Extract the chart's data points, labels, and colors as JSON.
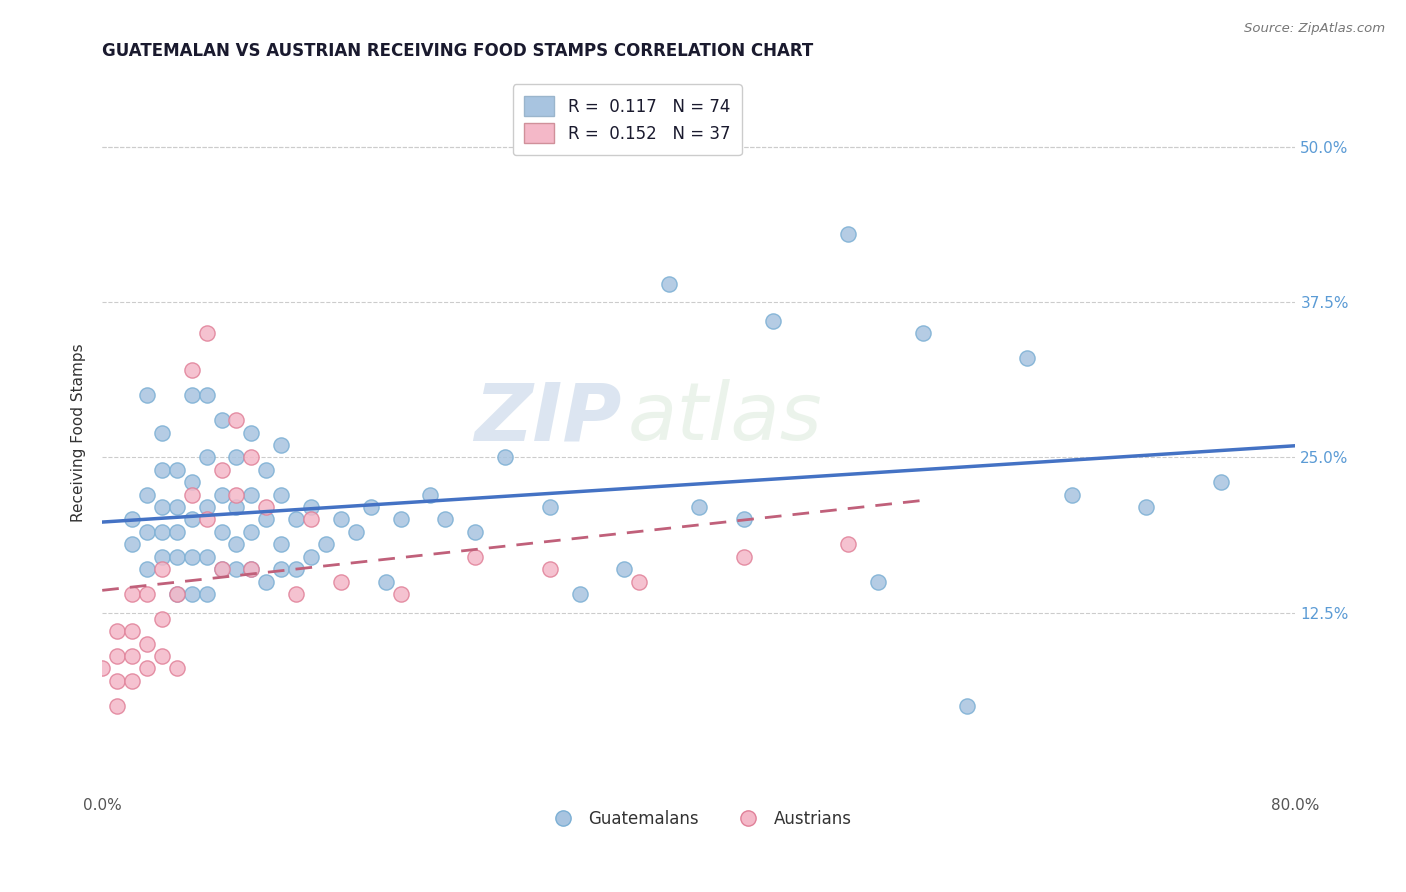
{
  "title": "GUATEMALAN VS AUSTRIAN RECEIVING FOOD STAMPS CORRELATION CHART",
  "source_text": "Source: ZipAtlas.com",
  "ylabel": "Receiving Food Stamps",
  "xmin": 0.0,
  "xmax": 0.8,
  "ymin": -0.02,
  "ymax": 0.56,
  "ytick_values": [
    0.125,
    0.25,
    0.375,
    0.5
  ],
  "ytick_labels_right": [
    "12.5%",
    "25.0%",
    "37.5%",
    "50.0%"
  ],
  "watermark_zip": "ZIP",
  "watermark_atlas": "atlas",
  "guatemalan_color": "#a8c4e0",
  "guatemalan_edge_color": "#7bafd4",
  "austrian_color": "#f4b8c8",
  "austrian_edge_color": "#e08098",
  "trend_guatemalan_color": "#4472c4",
  "trend_austrian_color": "#c0607a",
  "title_color": "#1a1a2e",
  "title_fontsize": 12,
  "legend_r1": "R =  0.117   N = 74",
  "legend_r2": "R =  0.152   N = 37",
  "legend_color1": "#a8c4e0",
  "legend_color2": "#f4b8c8",
  "bottom_legend": [
    "Guatemalans",
    "Austrians"
  ],
  "grid_color": "#cccccc",
  "right_tick_color": "#5b9bd5",
  "guatemalan_scatter_x": [
    0.02,
    0.02,
    0.03,
    0.03,
    0.03,
    0.03,
    0.04,
    0.04,
    0.04,
    0.04,
    0.04,
    0.05,
    0.05,
    0.05,
    0.05,
    0.05,
    0.06,
    0.06,
    0.06,
    0.06,
    0.06,
    0.07,
    0.07,
    0.07,
    0.07,
    0.07,
    0.08,
    0.08,
    0.08,
    0.08,
    0.09,
    0.09,
    0.09,
    0.09,
    0.1,
    0.1,
    0.1,
    0.1,
    0.11,
    0.11,
    0.11,
    0.12,
    0.12,
    0.12,
    0.12,
    0.13,
    0.13,
    0.14,
    0.14,
    0.15,
    0.16,
    0.17,
    0.18,
    0.19,
    0.2,
    0.22,
    0.23,
    0.25,
    0.27,
    0.3,
    0.32,
    0.35,
    0.38,
    0.4,
    0.43,
    0.45,
    0.5,
    0.52,
    0.55,
    0.58,
    0.62,
    0.65,
    0.7,
    0.75
  ],
  "guatemalan_scatter_y": [
    0.18,
    0.2,
    0.16,
    0.19,
    0.22,
    0.3,
    0.17,
    0.19,
    0.21,
    0.24,
    0.27,
    0.14,
    0.17,
    0.19,
    0.21,
    0.24,
    0.14,
    0.17,
    0.2,
    0.23,
    0.3,
    0.14,
    0.17,
    0.21,
    0.25,
    0.3,
    0.16,
    0.19,
    0.22,
    0.28,
    0.16,
    0.18,
    0.21,
    0.25,
    0.16,
    0.19,
    0.22,
    0.27,
    0.15,
    0.2,
    0.24,
    0.16,
    0.18,
    0.22,
    0.26,
    0.16,
    0.2,
    0.17,
    0.21,
    0.18,
    0.2,
    0.19,
    0.21,
    0.15,
    0.2,
    0.22,
    0.2,
    0.19,
    0.25,
    0.21,
    0.14,
    0.16,
    0.39,
    0.21,
    0.2,
    0.36,
    0.43,
    0.15,
    0.35,
    0.05,
    0.33,
    0.22,
    0.21,
    0.23
  ],
  "austrian_scatter_x": [
    0.0,
    0.01,
    0.01,
    0.01,
    0.01,
    0.02,
    0.02,
    0.02,
    0.02,
    0.03,
    0.03,
    0.03,
    0.04,
    0.04,
    0.04,
    0.05,
    0.05,
    0.06,
    0.06,
    0.07,
    0.07,
    0.08,
    0.08,
    0.09,
    0.09,
    0.1,
    0.1,
    0.11,
    0.13,
    0.14,
    0.16,
    0.2,
    0.25,
    0.3,
    0.36,
    0.43,
    0.5
  ],
  "austrian_scatter_y": [
    0.08,
    0.05,
    0.07,
    0.09,
    0.11,
    0.07,
    0.09,
    0.11,
    0.14,
    0.08,
    0.1,
    0.14,
    0.09,
    0.12,
    0.16,
    0.08,
    0.14,
    0.22,
    0.32,
    0.2,
    0.35,
    0.24,
    0.16,
    0.22,
    0.28,
    0.16,
    0.25,
    0.21,
    0.14,
    0.2,
    0.15,
    0.14,
    0.17,
    0.16,
    0.15,
    0.17,
    0.18
  ]
}
